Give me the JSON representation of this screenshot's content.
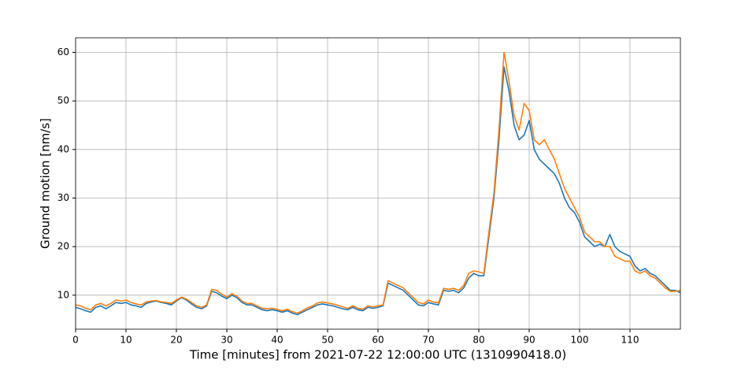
{
  "chart_data": {
    "type": "line",
    "xlabel": "Time [minutes] from 2021-07-22 12:00:00 UTC (1310990418.0)",
    "ylabel": "Ground motion [nm/s]",
    "x": [
      0,
      1,
      2,
      3,
      4,
      5,
      6,
      7,
      8,
      9,
      10,
      11,
      12,
      13,
      14,
      15,
      16,
      17,
      18,
      19,
      20,
      21,
      22,
      23,
      24,
      25,
      26,
      27,
      28,
      29,
      30,
      31,
      32,
      33,
      34,
      35,
      36,
      37,
      38,
      39,
      40,
      41,
      42,
      43,
      44,
      45,
      46,
      47,
      48,
      49,
      50,
      51,
      52,
      53,
      54,
      55,
      56,
      57,
      58,
      59,
      60,
      61,
      62,
      63,
      64,
      65,
      66,
      67,
      68,
      69,
      70,
      71,
      72,
      73,
      74,
      75,
      76,
      77,
      78,
      79,
      80,
      81,
      82,
      83,
      84,
      85,
      86,
      87,
      88,
      89,
      90,
      91,
      92,
      93,
      94,
      95,
      96,
      97,
      98,
      99,
      100,
      101,
      102,
      103,
      104,
      105,
      106,
      107,
      108,
      109,
      110,
      111,
      112,
      113,
      114,
      115,
      116,
      117,
      118,
      119,
      120
    ],
    "series": [
      {
        "color": "#1f77b4",
        "values": [
          7.5,
          7.2,
          6.8,
          6.5,
          7.5,
          7.8,
          7.2,
          7.8,
          8.5,
          8.3,
          8.5,
          8.0,
          7.8,
          7.5,
          8.3,
          8.6,
          8.8,
          8.5,
          8.3,
          8.0,
          8.8,
          9.5,
          9.0,
          8.2,
          7.5,
          7.2,
          7.8,
          10.8,
          10.5,
          9.8,
          9.3,
          10.0,
          9.5,
          8.5,
          8.0,
          8.0,
          7.5,
          7.0,
          6.8,
          7.0,
          6.8,
          6.5,
          6.8,
          6.3,
          6.0,
          6.5,
          7.0,
          7.5,
          8.0,
          8.2,
          8.0,
          7.8,
          7.5,
          7.2,
          7.0,
          7.5,
          7.0,
          6.8,
          7.5,
          7.3,
          7.5,
          7.8,
          12.5,
          12.0,
          11.5,
          11.0,
          10.0,
          9.0,
          8.0,
          7.8,
          8.5,
          8.2,
          8.0,
          11.0,
          10.8,
          11.0,
          10.5,
          11.5,
          13.5,
          14.5,
          14.0,
          14.0,
          22,
          30,
          42,
          57,
          52,
          45,
          42,
          43,
          46,
          40,
          38,
          37,
          36,
          35,
          33,
          30,
          28,
          27,
          25,
          22,
          21,
          20,
          20.5,
          20,
          22.5,
          20,
          19,
          18.5,
          18,
          16,
          15,
          15.5,
          14.5,
          14,
          13,
          12,
          11,
          11,
          10.5
        ]
      },
      {
        "color": "#ff7f0e",
        "values": [
          8.0,
          7.8,
          7.3,
          7.0,
          8.0,
          8.3,
          7.8,
          8.3,
          9.0,
          8.8,
          9.0,
          8.5,
          8.2,
          8.0,
          8.6,
          8.8,
          8.9,
          8.6,
          8.5,
          8.3,
          9.0,
          9.6,
          9.2,
          8.5,
          7.8,
          7.5,
          8.0,
          11.2,
          11.0,
          10.2,
          9.6,
          10.3,
          9.8,
          8.8,
          8.3,
          8.3,
          7.8,
          7.3,
          7.2,
          7.3,
          7.1,
          6.8,
          7.1,
          6.6,
          6.3,
          6.8,
          7.4,
          7.8,
          8.4,
          8.6,
          8.4,
          8.2,
          7.9,
          7.6,
          7.3,
          7.8,
          7.3,
          7.1,
          7.8,
          7.6,
          7.8,
          8.0,
          13.0,
          12.5,
          12.0,
          11.5,
          10.5,
          9.5,
          8.5,
          8.2,
          9.0,
          8.6,
          8.4,
          11.4,
          11.2,
          11.4,
          11.0,
          12.0,
          14.5,
          15.0,
          14.8,
          14.5,
          23,
          31,
          44,
          60,
          54,
          47,
          44,
          49.5,
          48,
          42,
          41,
          42,
          40,
          38,
          35,
          32,
          30,
          28,
          26,
          23,
          22,
          21,
          21,
          20,
          20,
          18,
          17.5,
          17,
          17,
          15,
          14.5,
          15,
          14,
          13.5,
          12.5,
          11.5,
          10.8,
          10.8,
          11
        ]
      }
    ],
    "xlim": [
      0,
      120
    ],
    "xticks": [
      0,
      10,
      20,
      30,
      40,
      50,
      60,
      70,
      80,
      90,
      100,
      110
    ],
    "ylim": [
      3,
      63
    ],
    "yticks": [
      10,
      20,
      30,
      40,
      50,
      60
    ],
    "grid": true
  }
}
